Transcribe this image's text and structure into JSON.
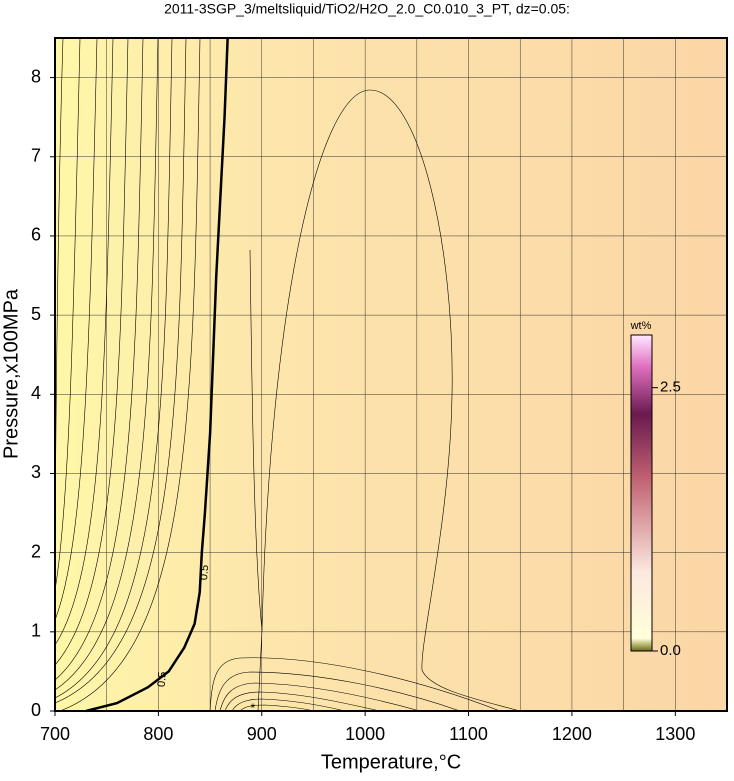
{
  "chart_data": {
    "type": "contour",
    "title": "2011-3SGP_3/meltsliquid/TiO2/H2O_2.0_C0.010_3_PT, dz=0.05:",
    "x_label": "Temperature,°C",
    "y_label": "Pressure,x100MPa",
    "xlim": [
      700,
      1350
    ],
    "ylim": [
      0,
      8.5
    ],
    "xticks": [
      700,
      800,
      900,
      1000,
      1100,
      1200,
      1300
    ],
    "x_minor_ticks": [
      750,
      850,
      950,
      1050,
      1150,
      1250
    ],
    "yticks": [
      0,
      1,
      2,
      3,
      4,
      5,
      6,
      7,
      8
    ],
    "grid": true,
    "contour": {
      "level": 0.5,
      "color": "#000000",
      "x": [
        730,
        760,
        790,
        810,
        825,
        835,
        840,
        842,
        845,
        850,
        853,
        856,
        860,
        864,
        867
      ],
      "y": [
        0,
        0.1,
        0.3,
        0.5,
        0.8,
        1.1,
        1.5,
        2,
        2.5,
        3.5,
        4.5,
        5.5,
        6.5,
        7.5,
        8.5
      ]
    },
    "marker": "*",
    "colorbar": {
      "label": "wt%",
      "clim": [
        0,
        3.0
      ],
      "ticks": [
        {
          "value": 0,
          "label": "0.0"
        },
        2.5
      ]
    }
  }
}
